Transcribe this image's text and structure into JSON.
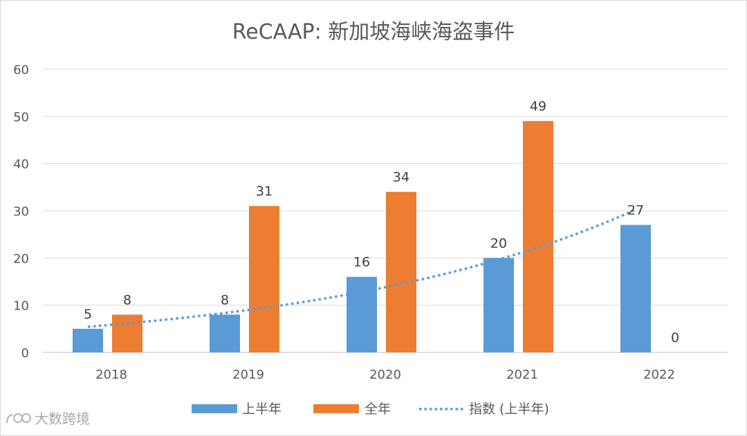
{
  "chart_data": {
    "type": "bar",
    "title": "ReCAAP: 新加坡海峡海盗事件",
    "categories": [
      "2018",
      "2019",
      "2020",
      "2021",
      "2022"
    ],
    "series": [
      {
        "name": "上半年",
        "values": [
          5,
          8,
          16,
          20,
          27
        ],
        "color": "#5b9bd5"
      },
      {
        "name": "全年",
        "values": [
          8,
          31,
          34,
          49,
          0
        ],
        "color": "#ed7d31"
      }
    ],
    "trendline": {
      "name": "指数 (上半年)",
      "type": "exponential",
      "color": "#5b9bd5"
    },
    "ylim": [
      0,
      60
    ],
    "yticks": [
      0,
      10,
      20,
      30,
      40,
      50,
      60
    ],
    "grid": true,
    "legend": "bottom",
    "xlabel": "",
    "ylabel": ""
  },
  "watermark": {
    "text": "大数跨境",
    "icon": "logo-icon"
  }
}
